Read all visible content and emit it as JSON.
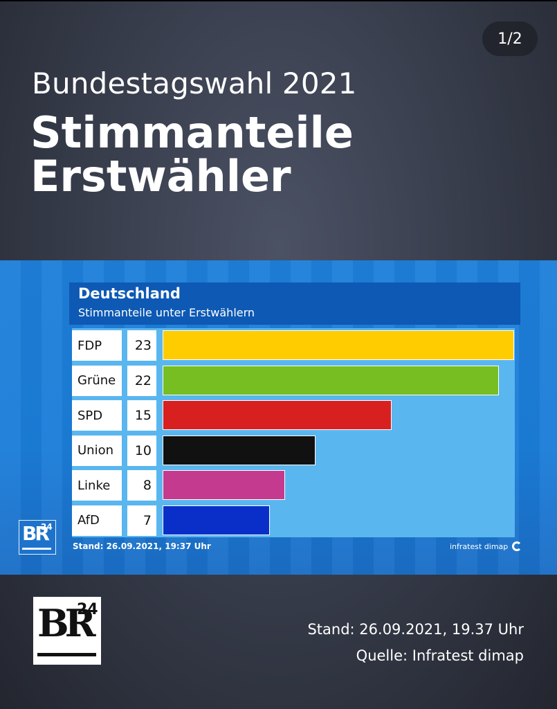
{
  "page_indicator": "1/2",
  "header": {
    "overline": "Bundestagswahl 2021",
    "title_line1": "Stimmanteile",
    "title_line2": "Erstwähler"
  },
  "chart_data": {
    "type": "bar",
    "orientation": "horizontal",
    "title": "Deutschland",
    "subtitle": "Stimmanteile unter Erstwählern",
    "categories": [
      "FDP",
      "Grüne",
      "SPD",
      "Union",
      "Linke",
      "AfD"
    ],
    "values": [
      23,
      22,
      15,
      10,
      8,
      7
    ],
    "colors": [
      "#ffcc00",
      "#76be21",
      "#d82020",
      "#111111",
      "#c43a8e",
      "#0a2fc8"
    ],
    "xlim": [
      0,
      23
    ],
    "unit": "%",
    "grid": false,
    "stand": "Stand: 26.09.2021, 19:37 Uhr",
    "source": "infratest dimap"
  },
  "logo": {
    "letters": "BR",
    "number": "24"
  },
  "footer": {
    "stand": "Stand: 26.09.2021, 19.37 Uhr",
    "source": "Quelle: Infratest dimap"
  }
}
